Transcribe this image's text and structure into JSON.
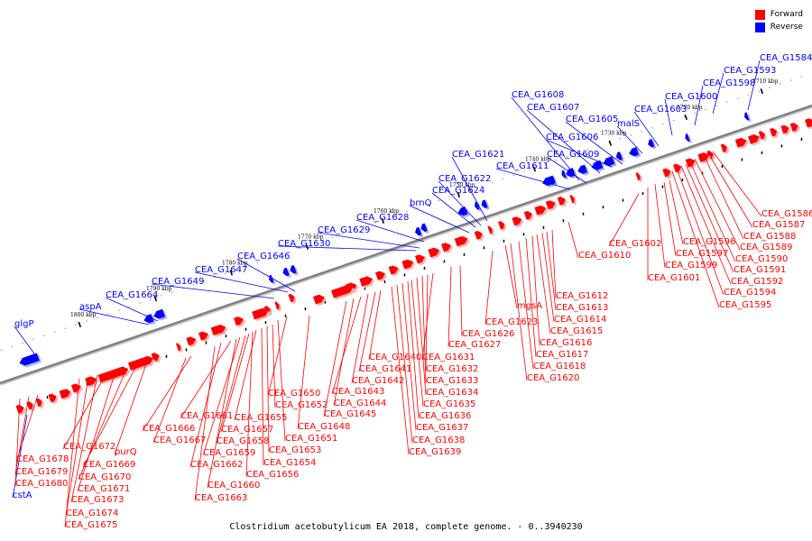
{
  "caption": "Clostridium acetobutylicum EA 2018, complete genome. - 0..3940230",
  "legend": [
    {
      "label": "Forward",
      "color": "#ff0000"
    },
    {
      "label": "Reverse",
      "color": "#0000ff"
    }
  ],
  "colors": {
    "forward": "#ff0000",
    "reverse": "#0000ff",
    "backbone": "#808080"
  },
  "ticks": [
    "1710 kbp",
    "1720 kbp",
    "1730 kbp",
    "1740 kbp",
    "1750 kbp",
    "1760 kbp",
    "1770 kbp",
    "1780 kbp",
    "1790 kbp",
    "1800 kbp"
  ],
  "reverse_labels": [
    "CEA_G1584",
    "CEA_G1593",
    "CEA_G1598",
    "CEA_G1600",
    "CEA_G1603",
    "malS",
    "CEA_G1605",
    "CEA_G1606",
    "CEA_G1607",
    "CEA_G1608",
    "CEA_G1609",
    "CEA_G1611",
    "CEA_G1621",
    "CEA_G1622",
    "CEA_G1624",
    "brnQ",
    "CEA_G1628",
    "CEA_G1629",
    "CEA_G1630",
    "CEA_G1646",
    "CEA_G1647",
    "CEA_G1649",
    "CEA_G1664",
    "aspA",
    "glgP",
    "cstA"
  ],
  "forward_labels": [
    "CEA_G1586",
    "CEA_G1587",
    "CEA_G1588",
    "CEA_G1589",
    "CEA_G1590",
    "CEA_G1591",
    "CEA_G1592",
    "CEA_G1594",
    "CEA_G1595",
    "CEA_G1596",
    "CEA_G1597",
    "CEA_G1599",
    "CEA_G1601",
    "CEA_G1602",
    "CEA_G1610",
    "CEA_G1612",
    "CEA_G1613",
    "CEA_G1614",
    "CEA_G1615",
    "CEA_G1616",
    "CEA_G1617",
    "CEA_G1618",
    "CEA_G1620",
    "mgsA",
    "CEA_G1623",
    "CEA_G1626",
    "CEA_G1627",
    "CEA_G1631",
    "CEA_G1632",
    "CEA_G1633",
    "CEA_G1634",
    "CEA_G1635",
    "CEA_G1636",
    "CEA_G1637",
    "CEA_G1638",
    "CEA_G1639",
    "CEA_G1640",
    "CEA_G1641",
    "CEA_G1642",
    "CEA_G1643",
    "CEA_G1644",
    "CEA_G1645",
    "CEA_G1648",
    "CEA_G1650",
    "CEA_G1651",
    "CEA_G1652",
    "CEA_G1653",
    "CEA_G1654",
    "CEA_G1655",
    "CEA_G1656",
    "CEA_G1657",
    "CEA_G1658",
    "CEA_G1659",
    "CEA_G1660",
    "CEA_G1661",
    "CEA_G1662",
    "CEA_G1663",
    "CEA_G1666",
    "CEA_G1667",
    "purQ",
    "CEA_G1669",
    "CEA_G1670",
    "CEA_G1671",
    "CEA_G1672",
    "CEA_G1673",
    "CEA_G1674",
    "CEA_G1675",
    "CEA_G1678",
    "CEA_G1679",
    "CEA_G1680"
  ]
}
